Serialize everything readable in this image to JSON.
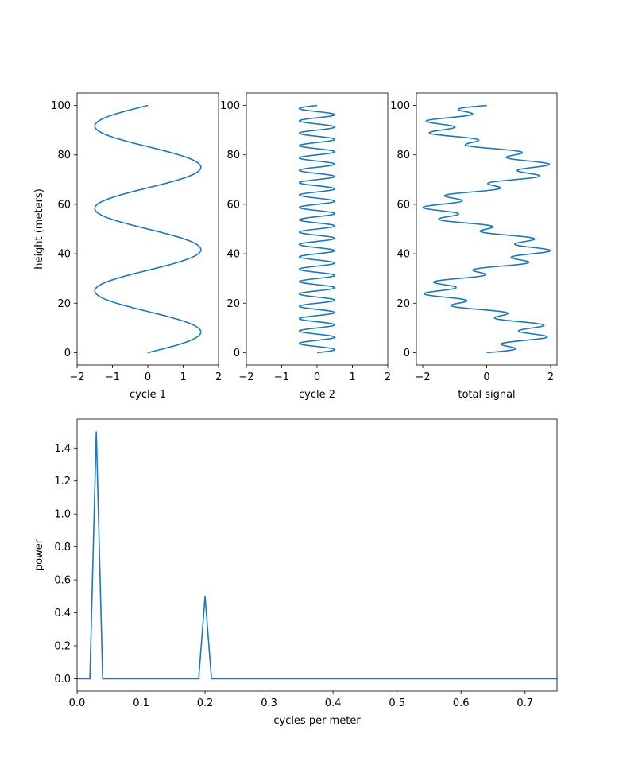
{
  "chart_data": [
    {
      "type": "line",
      "xlabel": "cycle 1",
      "ylabel": "height (meters)",
      "xlim": [
        -2,
        2
      ],
      "ylim": [
        -5,
        105
      ],
      "xticks": [
        -2,
        -1,
        0,
        1,
        2
      ],
      "yticks": [
        0,
        20,
        40,
        60,
        80,
        100
      ],
      "xtick_labels": [
        "−2",
        "−1",
        "0",
        "1",
        "2"
      ],
      "ytick_labels": [
        "0",
        "20",
        "40",
        "60",
        "80",
        "100"
      ],
      "series": [
        {
          "function": "sine",
          "amplitude": 1.5,
          "period_m": 33.33,
          "y_range": [
            0,
            100
          ],
          "color": "#1f77b4"
        }
      ]
    },
    {
      "type": "line",
      "xlabel": "cycle 2",
      "ylabel": "",
      "xlim": [
        -2,
        2
      ],
      "ylim": [
        -5,
        105
      ],
      "xticks": [
        -2,
        -1,
        0,
        1,
        2
      ],
      "yticks": [
        0,
        20,
        40,
        60,
        80,
        100
      ],
      "xtick_labels": [
        "−2",
        "−1",
        "0",
        "1",
        "2"
      ],
      "ytick_labels": [
        "0",
        "20",
        "40",
        "60",
        "80",
        "100"
      ],
      "series": [
        {
          "function": "sine",
          "amplitude": 0.5,
          "period_m": 5,
          "y_range": [
            0,
            100
          ],
          "color": "#1f77b4"
        }
      ]
    },
    {
      "type": "line",
      "xlabel": "total signal",
      "ylabel": "",
      "xlim": [
        -2.2,
        2.2
      ],
      "ylim": [
        -5,
        105
      ],
      "xticks": [
        -2,
        0,
        2
      ],
      "yticks": [
        0,
        20,
        40,
        60,
        80,
        100
      ],
      "xtick_labels": [
        "−2",
        "0",
        "2"
      ],
      "ytick_labels": [
        "0",
        "20",
        "40",
        "60",
        "80",
        "100"
      ],
      "series": [
        {
          "function": "sum of cycle 1 and cycle 2",
          "y_range": [
            0,
            100
          ],
          "color": "#1f77b4"
        }
      ]
    },
    {
      "type": "line",
      "xlabel": "cycles per meter",
      "ylabel": "power",
      "xlim": [
        0,
        0.75
      ],
      "ylim": [
        -0.075,
        1.575
      ],
      "xticks": [
        0,
        0.1,
        0.2,
        0.3,
        0.4,
        0.5,
        0.6,
        0.7
      ],
      "yticks": [
        0,
        0.2,
        0.4,
        0.6,
        0.8,
        1.0,
        1.2,
        1.4
      ],
      "xtick_labels": [
        "0.0",
        "0.1",
        "0.2",
        "0.3",
        "0.4",
        "0.5",
        "0.6",
        "0.7"
      ],
      "ytick_labels": [
        "0.0",
        "0.2",
        "0.4",
        "0.6",
        "0.8",
        "1.0",
        "1.2",
        "1.4"
      ],
      "series": [
        {
          "color": "#1f77b4",
          "x": [
            0,
            0.02,
            0.03,
            0.04,
            0.19,
            0.2,
            0.21,
            0.75
          ],
          "y": [
            0,
            0,
            1.5,
            0,
            0,
            0.5,
            0,
            0
          ]
        }
      ]
    }
  ]
}
